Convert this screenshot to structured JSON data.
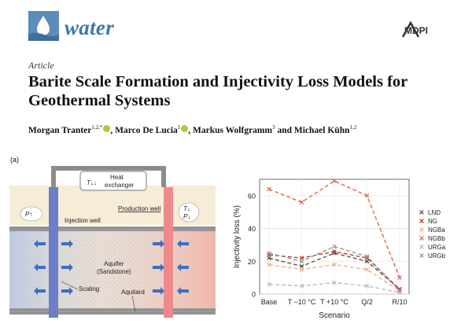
{
  "header": {
    "journal": "water",
    "publisher": "MDPI",
    "article_type": "Article",
    "title": "Barite Scale Formation and Injectivity Loss Models for Geothermal Systems",
    "authors": [
      {
        "name": "Morgan Tranter",
        "sup": "1,2,*"
      },
      {
        "name": "Marco De Lucia",
        "sup": "1"
      },
      {
        "name": "Markus Wolfgramm",
        "sup": "3"
      },
      {
        "name": "Michael Kühn",
        "sup": "1,2"
      }
    ],
    "author_joiners": [
      ", ",
      ", ",
      " and "
    ]
  },
  "figure": {
    "panel_label": "(a)",
    "schematic": {
      "heat_exchanger": "Heat exchanger",
      "heat_exchanger_line1": "Heat",
      "heat_exchanger_line2": "exchanger",
      "t_down": "T↓↓",
      "p_up": "P↑",
      "t_down_right": "T↓",
      "p_down_right": "P↓",
      "production_well": "Production well",
      "injection_well": "Injection well",
      "aquifer": "Aquifer",
      "sandstone": "(Sandstone)",
      "scaling": "Scaling",
      "aquitard": "Aquitard"
    }
  },
  "chart_data": {
    "type": "line",
    "categories": [
      "Base",
      "T −10 °C",
      "T +10 °C",
      "Q/2",
      "R/10"
    ],
    "xlabel": "Scenario",
    "ylabel": "Injectivity loss (%)",
    "ylim": [
      0,
      70
    ],
    "yticks": [
      0,
      20,
      40,
      60
    ],
    "grid": true,
    "legend_position": "right",
    "series": [
      {
        "name": "LND",
        "color": "#555555",
        "values": [
          22,
          17,
          25,
          20,
          3
        ]
      },
      {
        "name": "NG",
        "color": "#c0392b",
        "values": [
          24,
          22,
          26,
          22,
          3
        ]
      },
      {
        "name": "NGBa",
        "color": "#f4b183",
        "values": [
          18,
          15,
          18,
          15,
          2
        ]
      },
      {
        "name": "NGBb",
        "color": "#e0664f",
        "values": [
          64,
          56,
          69,
          60,
          10
        ]
      },
      {
        "name": "URGa",
        "color": "#bbbbbb",
        "values": [
          6,
          5,
          7,
          5,
          1
        ]
      },
      {
        "name": "URGb",
        "color": "#999999",
        "values": [
          25,
          20,
          29,
          23,
          2
        ]
      }
    ]
  }
}
